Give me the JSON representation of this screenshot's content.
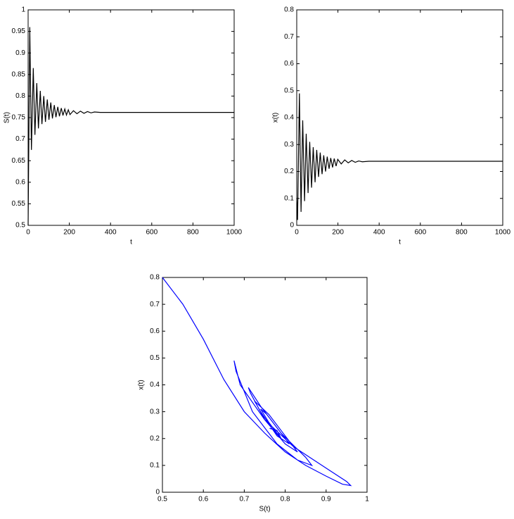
{
  "chart_data": [
    {
      "type": "line",
      "xlabel": "t",
      "ylabel": "S(t)",
      "color": "#000000",
      "x": [
        0,
        8,
        16,
        25,
        33,
        42,
        50,
        59,
        67,
        76,
        84,
        93,
        101,
        110,
        118,
        127,
        135,
        144,
        152,
        161,
        169,
        178,
        186,
        195,
        203,
        220,
        237,
        254,
        271,
        288,
        305,
        322,
        350,
        1000
      ],
      "values": [
        0.5,
        0.96,
        0.675,
        0.865,
        0.71,
        0.83,
        0.725,
        0.812,
        0.735,
        0.8,
        0.74,
        0.792,
        0.745,
        0.785,
        0.748,
        0.779,
        0.751,
        0.775,
        0.753,
        0.772,
        0.755,
        0.77,
        0.756,
        0.768,
        0.757,
        0.766,
        0.759,
        0.765,
        0.76,
        0.764,
        0.761,
        0.763,
        0.762,
        0.762
      ],
      "xlim": [
        0,
        1000
      ],
      "xticks": [
        0,
        200,
        400,
        600,
        800,
        1000
      ],
      "ylim": [
        0.5,
        1
      ],
      "yticks": [
        0.5,
        0.55,
        0.6,
        0.65,
        0.7,
        0.75,
        0.8,
        0.85,
        0.9,
        0.95,
        1
      ]
    },
    {
      "type": "line",
      "xlabel": "t",
      "ylabel": "x(t)",
      "color": "#000000",
      "x": [
        0,
        4,
        13,
        21,
        29,
        38,
        46,
        55,
        63,
        72,
        80,
        89,
        97,
        106,
        114,
        123,
        131,
        140,
        148,
        157,
        165,
        174,
        182,
        191,
        199,
        216,
        233,
        250,
        267,
        284,
        301,
        318,
        350,
        1000
      ],
      "values": [
        0.1,
        0.02,
        0.49,
        0.05,
        0.39,
        0.09,
        0.34,
        0.12,
        0.31,
        0.14,
        0.29,
        0.16,
        0.28,
        0.18,
        0.27,
        0.19,
        0.26,
        0.2,
        0.255,
        0.21,
        0.25,
        0.215,
        0.248,
        0.22,
        0.245,
        0.228,
        0.243,
        0.232,
        0.241,
        0.234,
        0.239,
        0.236,
        0.238,
        0.238
      ],
      "xlim": [
        0,
        1000
      ],
      "xticks": [
        0,
        200,
        400,
        600,
        800,
        1000
      ],
      "ylim": [
        0,
        0.8
      ],
      "yticks": [
        0,
        0.1,
        0.2,
        0.3,
        0.4,
        0.5,
        0.6,
        0.7,
        0.8
      ]
    },
    {
      "type": "line",
      "xlabel": "S(t)",
      "ylabel": "x(t)",
      "color": "#0000ff",
      "x": [
        0.5,
        0.55,
        0.6,
        0.65,
        0.7,
        0.75,
        0.8,
        0.85,
        0.9,
        0.94,
        0.96,
        0.95,
        0.9,
        0.82,
        0.75,
        0.69,
        0.675,
        0.68,
        0.72,
        0.78,
        0.83,
        0.865,
        0.85,
        0.79,
        0.74,
        0.71,
        0.715,
        0.75,
        0.8,
        0.83,
        0.8,
        0.76,
        0.725,
        0.74,
        0.78,
        0.81,
        0.79,
        0.755,
        0.74,
        0.76,
        0.79,
        0.78,
        0.762
      ],
      "values": [
        0.8,
        0.7,
        0.57,
        0.42,
        0.3,
        0.22,
        0.15,
        0.1,
        0.06,
        0.03,
        0.025,
        0.04,
        0.09,
        0.17,
        0.27,
        0.4,
        0.49,
        0.45,
        0.3,
        0.18,
        0.12,
        0.1,
        0.13,
        0.22,
        0.32,
        0.39,
        0.37,
        0.27,
        0.18,
        0.15,
        0.21,
        0.29,
        0.34,
        0.3,
        0.21,
        0.18,
        0.22,
        0.29,
        0.31,
        0.26,
        0.2,
        0.23,
        0.238
      ],
      "xlim": [
        0.5,
        1
      ],
      "xticks": [
        0.5,
        0.6,
        0.7,
        0.8,
        0.9,
        1
      ],
      "ylim": [
        0,
        0.8
      ],
      "yticks": [
        0,
        0.1,
        0.2,
        0.3,
        0.4,
        0.5,
        0.6,
        0.7,
        0.8
      ]
    }
  ]
}
